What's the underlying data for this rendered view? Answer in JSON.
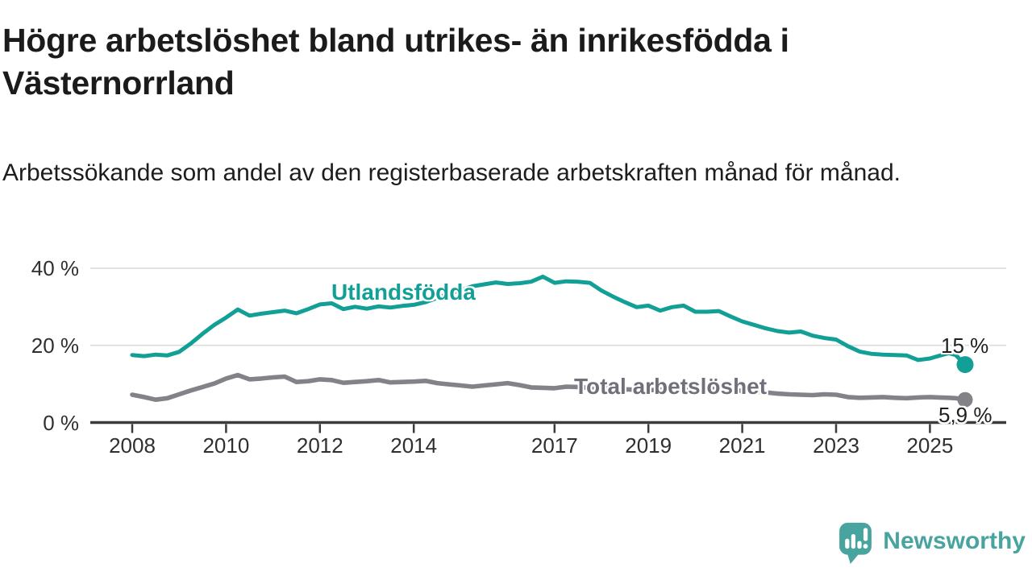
{
  "page": {
    "title": "Högre arbetslöshet bland utrikes- än inrikesfödda i Västernorrland",
    "subtitle": "Arbetssökande som andel av den registerbaserade arbetskraften månad för månad."
  },
  "chart_data": {
    "type": "line",
    "unit": "%",
    "grid": true,
    "legend_position": "inline-labels-on-lines",
    "x_axis": {
      "ticks": [
        2008,
        2010,
        2012,
        2014,
        2017,
        2019,
        2021,
        2023,
        2025
      ],
      "tick_labels": [
        "2008",
        "2010",
        "2012",
        "2014",
        "2017",
        "2019",
        "2021",
        "2023",
        "2025"
      ],
      "range": [
        2007.1,
        2026.6
      ]
    },
    "y_axis": {
      "tick_values": [
        0,
        20,
        40
      ],
      "tick_labels": [
        "0 %",
        "20 %",
        "40 %"
      ],
      "range": [
        0,
        41.5
      ]
    },
    "x": [
      2008.0,
      2008.25,
      2008.5,
      2008.75,
      2009.0,
      2009.25,
      2009.5,
      2009.75,
      2010.0,
      2010.25,
      2010.5,
      2010.75,
      2011.0,
      2011.25,
      2011.5,
      2011.75,
      2012.0,
      2012.25,
      2012.5,
      2012.75,
      2013.0,
      2013.25,
      2013.5,
      2013.75,
      2014.0,
      2014.25,
      2014.5,
      2014.75,
      2015.0,
      2015.25,
      2015.5,
      2015.75,
      2016.0,
      2016.25,
      2016.5,
      2016.75,
      2017.0,
      2017.25,
      2017.5,
      2017.75,
      2018.0,
      2018.25,
      2018.5,
      2018.75,
      2019.0,
      2019.25,
      2019.5,
      2019.75,
      2020.0,
      2020.25,
      2020.5,
      2020.75,
      2021.0,
      2021.25,
      2021.5,
      2021.75,
      2022.0,
      2022.25,
      2022.5,
      2022.75,
      2023.0,
      2023.25,
      2023.5,
      2023.75,
      2024.0,
      2024.25,
      2024.5,
      2024.75,
      2025.0,
      2025.2,
      2025.4,
      2025.55,
      2025.75
    ],
    "series": [
      {
        "name": "Utlandsfödda",
        "color": "#12A096",
        "end_label": "15 %",
        "end_value": 15,
        "values": [
          17.5,
          17.2,
          17.6,
          17.4,
          18.3,
          20.5,
          23.0,
          25.3,
          27.2,
          29.3,
          27.7,
          28.2,
          28.6,
          29.0,
          28.3,
          29.4,
          30.6,
          30.9,
          29.4,
          30.0,
          29.5,
          30.1,
          29.8,
          30.2,
          30.5,
          31.2,
          32.3,
          33.4,
          34.3,
          35.3,
          35.8,
          36.3,
          35.9,
          36.1,
          36.5,
          37.8,
          36.2,
          36.6,
          36.5,
          36.2,
          34.2,
          32.6,
          31.2,
          29.9,
          30.3,
          29.0,
          29.9,
          30.3,
          28.7,
          28.7,
          28.9,
          27.5,
          26.2,
          25.3,
          24.4,
          23.7,
          23.3,
          23.6,
          22.5,
          21.9,
          21.5,
          19.8,
          18.4,
          17.8,
          17.6,
          17.5,
          17.4,
          16.2,
          16.6,
          17.3,
          18.0,
          17.5,
          15.0
        ]
      },
      {
        "name": "Total arbetslöshet",
        "color": "#828288",
        "end_label": "5,9 %",
        "end_value": 5.9,
        "values": [
          7.2,
          6.6,
          5.9,
          6.3,
          7.3,
          8.3,
          9.2,
          10.1,
          11.4,
          12.3,
          11.2,
          11.4,
          11.7,
          11.9,
          10.5,
          10.7,
          11.2,
          11.0,
          10.3,
          10.5,
          10.7,
          11.0,
          10.4,
          10.5,
          10.6,
          10.8,
          10.2,
          9.9,
          9.6,
          9.3,
          9.6,
          9.9,
          10.2,
          9.7,
          9.1,
          9.0,
          8.9,
          9.3,
          9.2,
          9.0,
          8.8,
          8.9,
          8.6,
          8.5,
          8.4,
          8.5,
          8.3,
          8.4,
          8.6,
          8.9,
          8.8,
          8.5,
          8.2,
          8.0,
          7.8,
          7.5,
          7.3,
          7.2,
          7.1,
          7.3,
          7.2,
          6.6,
          6.4,
          6.5,
          6.6,
          6.4,
          6.3,
          6.5,
          6.6,
          6.5,
          6.4,
          6.3,
          5.9
        ]
      }
    ]
  },
  "branding": {
    "logo_text": "Newsworthy",
    "logo_color": "#48A49E"
  },
  "colors": {
    "series_foreign_born": "#12A096",
    "series_total": "#828288",
    "axis": "#3b3b3b",
    "gridline": "#dcdcdc",
    "text": "#1b1b1b"
  }
}
